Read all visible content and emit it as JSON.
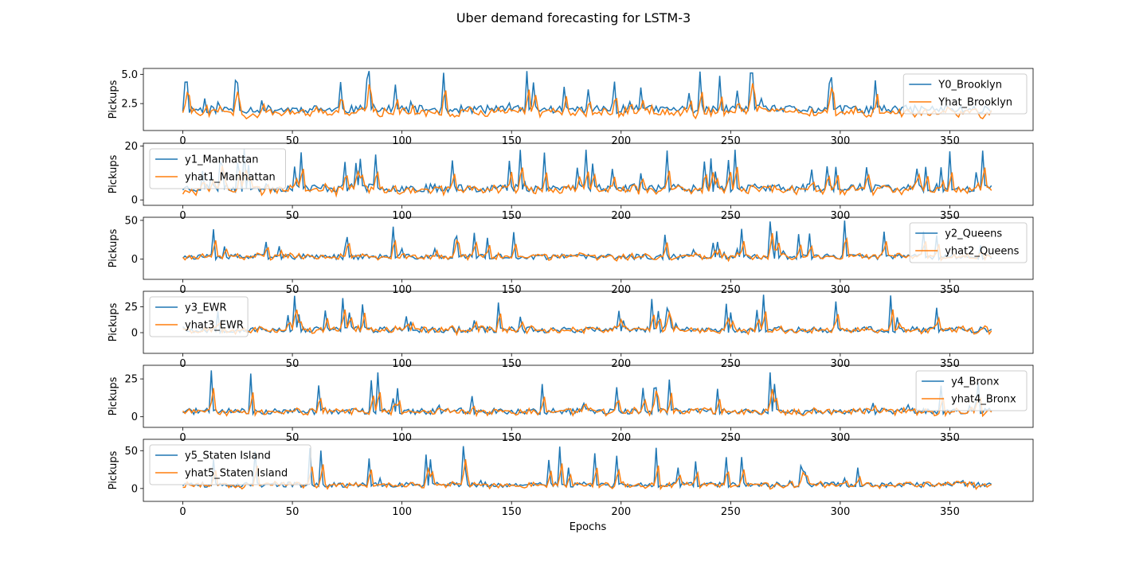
{
  "figure": {
    "title": "Uber demand forecasting for LSTM-3",
    "xlabel": "Epochs"
  },
  "colors": {
    "actual": "#1f77b4",
    "predicted": "#ff7f0e"
  },
  "chart_data": [
    {
      "type": "line",
      "ylabel": "Pickups",
      "xlim": [
        -18,
        388
      ],
      "ylim": [
        0.2,
        5.5
      ],
      "xticks": [
        0,
        50,
        100,
        150,
        200,
        250,
        300,
        350
      ],
      "yticks": [
        2.5,
        5.0
      ],
      "ytick_labels": [
        "2.5",
        "5.0"
      ],
      "n": 370,
      "base": 1.9,
      "peak": 5.3,
      "spread": 0.7,
      "floor": 0.4,
      "seed": 11,
      "legend_loc": "upper-right",
      "series": [
        {
          "name": "Y0_Brooklyn",
          "role": "actual"
        },
        {
          "name": "Yhat_Brooklyn",
          "role": "predicted"
        }
      ]
    },
    {
      "type": "line",
      "ylabel": "Pickups",
      "xlim": [
        -18,
        388
      ],
      "ylim": [
        -2,
        21
      ],
      "xticks": [
        0,
        50,
        100,
        150,
        200,
        250,
        300,
        350
      ],
      "yticks": [
        0,
        20
      ],
      "ytick_labels": [
        "0",
        "20"
      ],
      "n": 370,
      "base": 4,
      "peak": 20,
      "spread": 3,
      "floor": -1,
      "seed": 23,
      "legend_loc": "upper-left",
      "series": [
        {
          "name": "y1_Manhattan",
          "role": "actual"
        },
        {
          "name": "yhat1_Manhattan",
          "role": "predicted"
        }
      ]
    },
    {
      "type": "line",
      "ylabel": "Pickups",
      "xlim": [
        -18,
        388
      ],
      "ylim": [
        -26,
        54
      ],
      "xticks": [
        0,
        50,
        100,
        150,
        200,
        250,
        300,
        350
      ],
      "yticks": [
        0,
        50
      ],
      "ytick_labels": [
        "0",
        "50"
      ],
      "n": 370,
      "base": 2,
      "peak": 50,
      "spread": 7,
      "floor": -22,
      "seed": 37,
      "legend_loc": "upper-right",
      "series": [
        {
          "name": "y2_Queens",
          "role": "actual"
        },
        {
          "name": "yhat2_Queens",
          "role": "predicted"
        }
      ]
    },
    {
      "type": "line",
      "ylabel": "Pickups",
      "xlim": [
        -18,
        388
      ],
      "ylim": [
        -20,
        40
      ],
      "xticks": [
        0,
        50,
        100,
        150,
        200,
        250,
        300,
        350
      ],
      "yticks": [
        0,
        25
      ],
      "ytick_labels": [
        "0",
        "25"
      ],
      "n": 370,
      "base": 2,
      "peak": 37,
      "spread": 6,
      "floor": -17,
      "seed": 53,
      "legend_loc": "upper-left",
      "series": [
        {
          "name": "y3_EWR",
          "role": "actual"
        },
        {
          "name": "yhat3_EWR",
          "role": "predicted"
        }
      ]
    },
    {
      "type": "line",
      "ylabel": "Pickups",
      "xlim": [
        -18,
        388
      ],
      "ylim": [
        -7,
        34
      ],
      "xticks": [
        0,
        50,
        100,
        150,
        200,
        250,
        300,
        350
      ],
      "yticks": [
        0,
        25
      ],
      "ytick_labels": [
        "0",
        "25"
      ],
      "n": 370,
      "base": 3,
      "peak": 32,
      "spread": 4,
      "floor": -4,
      "seed": 71,
      "legend_loc": "upper-right",
      "series": [
        {
          "name": "y4_Bronx",
          "role": "actual"
        },
        {
          "name": "yhat4_Bronx",
          "role": "predicted"
        }
      ]
    },
    {
      "type": "line",
      "ylabel": "Pickups",
      "xlim": [
        -18,
        388
      ],
      "ylim": [
        -17,
        65
      ],
      "xticks": [
        0,
        50,
        100,
        150,
        200,
        250,
        300,
        350
      ],
      "xtick_labels": [
        "0",
        "50",
        "100",
        "150",
        "200",
        "250",
        "300",
        "350"
      ],
      "yticks": [
        0,
        50
      ],
      "ytick_labels": [
        "0",
        "50"
      ],
      "n": 370,
      "base": 4,
      "peak": 58,
      "spread": 7,
      "floor": -10,
      "seed": 89,
      "legend_loc": "upper-left",
      "series": [
        {
          "name": "y5_Staten Island",
          "role": "actual"
        },
        {
          "name": "yhat5_Staten Island",
          "role": "predicted"
        }
      ]
    }
  ]
}
